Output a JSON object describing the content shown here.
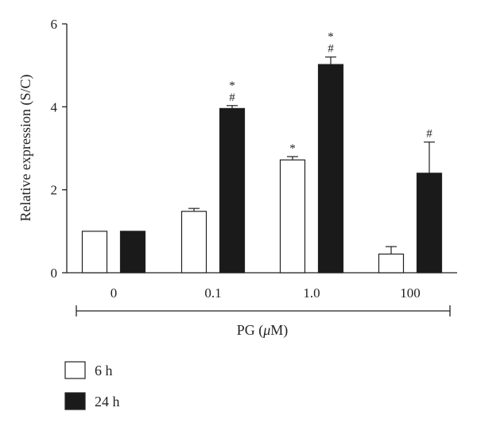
{
  "chart_data": {
    "type": "bar",
    "ylabel": "Relative expression (S/C)",
    "xlabel": "PG (μM)",
    "ylim": [
      0,
      6
    ],
    "yticks": [
      0,
      2,
      4,
      6
    ],
    "categories": [
      "0",
      "0.1",
      "1.0",
      "100"
    ],
    "series": [
      {
        "name": "6 h",
        "color": "#ffffff",
        "values": [
          1.0,
          1.48,
          2.72,
          0.45
        ],
        "errors": [
          0,
          0.07,
          0.08,
          0.18
        ],
        "annotations": [
          "",
          "",
          "*",
          ""
        ]
      },
      {
        "name": "24 h",
        "color": "#1a1a1a",
        "values": [
          1.0,
          3.96,
          5.02,
          2.4
        ],
        "errors": [
          0,
          0.07,
          0.18,
          0.75
        ],
        "annotations": [
          "",
          "*\n#",
          "*\n#",
          "#"
        ]
      }
    ],
    "legend_position": "bottom-left",
    "grid": false
  }
}
